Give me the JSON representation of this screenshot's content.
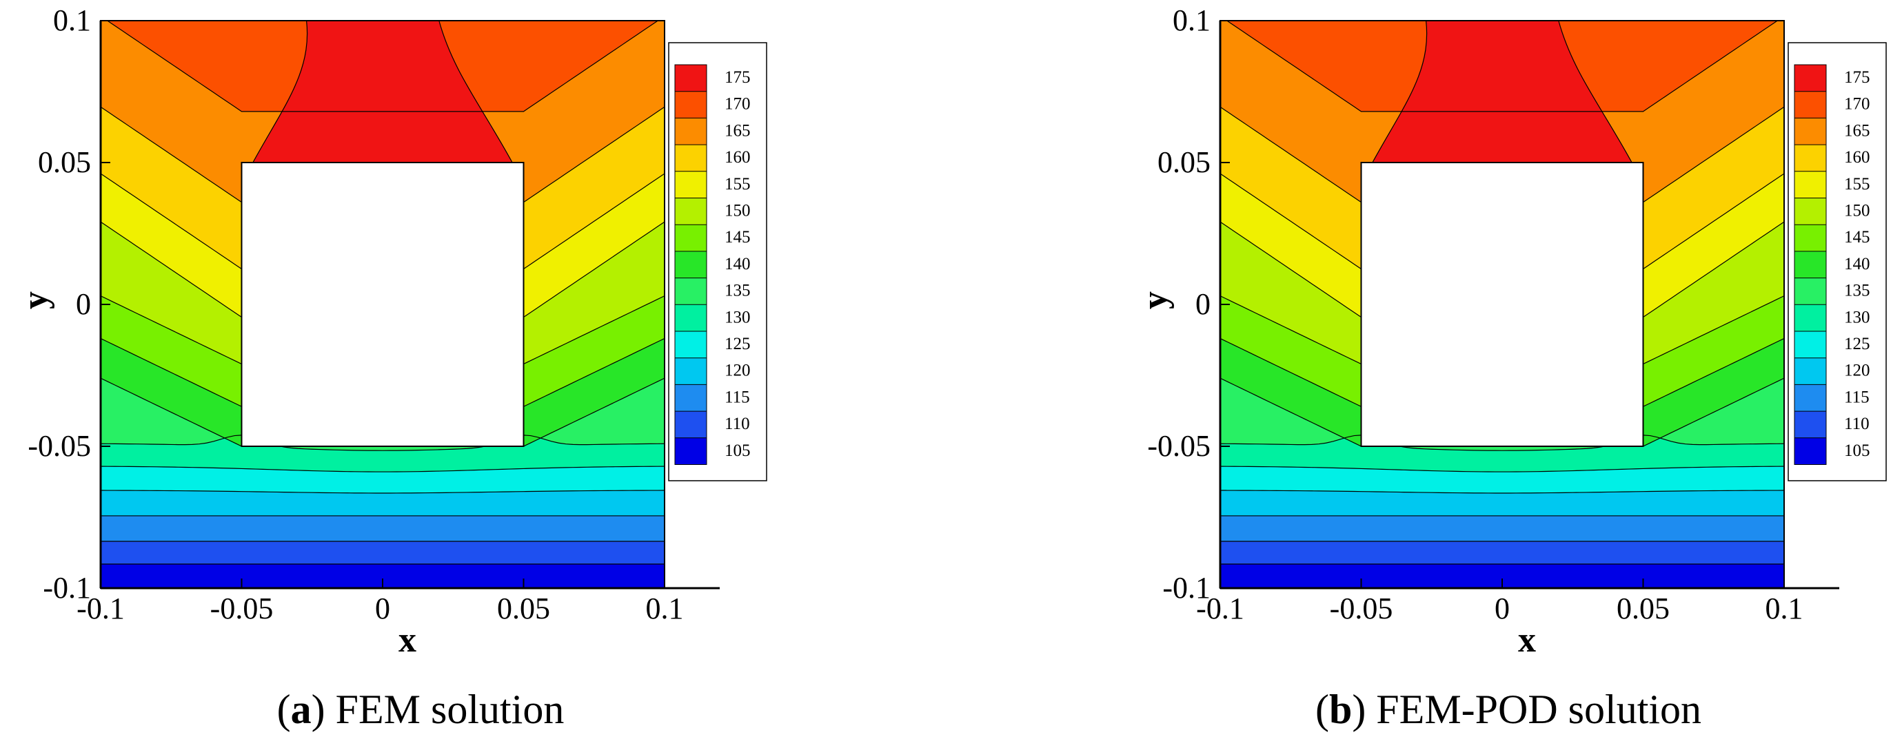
{
  "chart_data": [
    {
      "type": "heatmap",
      "panel_id": "a",
      "caption_letter": "a",
      "caption_text": "FEM solution",
      "xlabel": "x",
      "ylabel": "y",
      "xlim": [
        -0.1,
        0.1
      ],
      "ylim": [
        -0.1,
        0.1
      ],
      "x_ticks": [
        -0.1,
        -0.05,
        0,
        0.05,
        0.1
      ],
      "x_tick_labels": [
        "-0.1",
        "-0.05",
        "0",
        "0.05",
        "0.1"
      ],
      "y_ticks": [
        0.1,
        0.05,
        0,
        -0.05,
        -0.1
      ],
      "y_tick_labels": [
        "0.1",
        "0.05",
        "0",
        "-0.05",
        "-0.1"
      ],
      "obstacle": {
        "x_range": [
          -0.05,
          0.05
        ],
        "y_range": [
          -0.05,
          0.05
        ],
        "fill": "#ffffff"
      },
      "contour_levels": [
        105,
        110,
        115,
        120,
        125,
        130,
        135,
        140,
        145,
        150,
        155,
        160,
        165,
        170,
        175
      ],
      "legend_labels": [
        "175",
        "170",
        "165",
        "160",
        "155",
        "150",
        "145",
        "140",
        "135",
        "130",
        "125",
        "120",
        "115",
        "110",
        "105"
      ],
      "band_colors": [
        "#0000e6",
        "#1e50f0",
        "#1e8cf0",
        "#00c8f0",
        "#00f0e6",
        "#00f0a0",
        "#28f064",
        "#28e628",
        "#78f000",
        "#b4f000",
        "#f0f000",
        "#fcd200",
        "#fc8c00",
        "#fc5000",
        "#f01414"
      ]
    },
    {
      "type": "heatmap",
      "panel_id": "b",
      "caption_letter": "b",
      "caption_text": "FEM-POD solution",
      "xlabel": "x",
      "ylabel": "y",
      "xlim": [
        -0.1,
        0.1
      ],
      "ylim": [
        -0.1,
        0.1
      ],
      "x_ticks": [
        -0.1,
        -0.05,
        0,
        0.05,
        0.1
      ],
      "x_tick_labels": [
        "-0.1",
        "-0.05",
        "0",
        "0.05",
        "0.1"
      ],
      "y_ticks": [
        0.1,
        0.05,
        0,
        -0.05,
        -0.1
      ],
      "y_tick_labels": [
        "0.1",
        "0.05",
        "0",
        "-0.05",
        "-0.1"
      ],
      "obstacle": {
        "x_range": [
          -0.05,
          0.05
        ],
        "y_range": [
          -0.05,
          0.05
        ],
        "fill": "#ffffff"
      },
      "contour_levels": [
        105,
        110,
        115,
        120,
        125,
        130,
        135,
        140,
        145,
        150,
        155,
        160,
        165,
        170,
        175
      ],
      "legend_labels": [
        "175",
        "170",
        "165",
        "160",
        "155",
        "150",
        "145",
        "140",
        "135",
        "130",
        "125",
        "120",
        "115",
        "110",
        "105"
      ],
      "band_colors": [
        "#0000e6",
        "#1e50f0",
        "#1e8cf0",
        "#00c8f0",
        "#00f0e6",
        "#00f0a0",
        "#28f064",
        "#28e628",
        "#78f000",
        "#b4f000",
        "#f0f000",
        "#fcd200",
        "#fc8c00",
        "#fc5000",
        "#f01414"
      ]
    }
  ]
}
